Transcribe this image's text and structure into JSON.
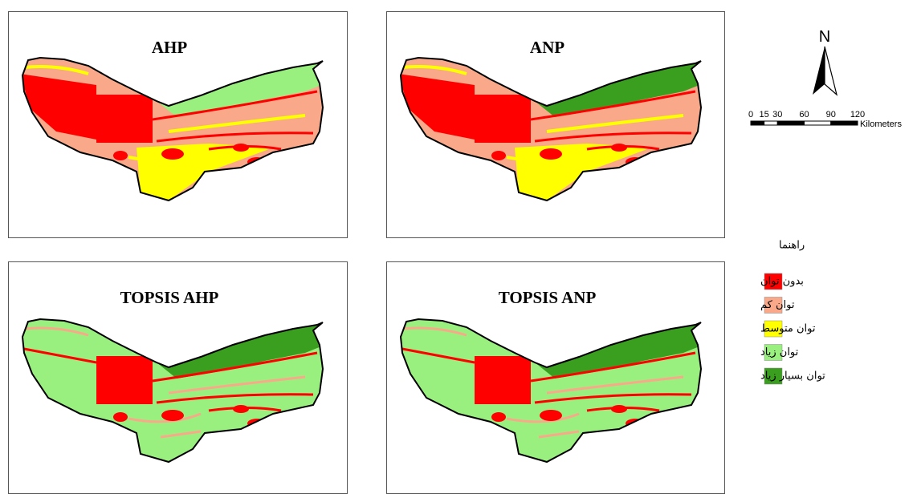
{
  "panels": [
    {
      "title": "AHP"
    },
    {
      "title": "ANP"
    },
    {
      "title": "TOPSIS AHP"
    },
    {
      "title": "TOPSIS ANP"
    }
  ],
  "north_arrow": {
    "label": "N"
  },
  "scale_bar": {
    "ticks": [
      0,
      15,
      30,
      60,
      90,
      120
    ],
    "unit": "Kilometers"
  },
  "legend": {
    "title": "راهنما",
    "items": [
      {
        "label": "بدون توان",
        "color": "#ff0000"
      },
      {
        "label": "توان کم",
        "color": "#f9a98a"
      },
      {
        "label": "توان متوسط",
        "color": "#ffff00"
      },
      {
        "label": "توان زیاد",
        "color": "#99f07f"
      },
      {
        "label": "توان بسیار زیاد",
        "color": "#3a9e1f"
      }
    ]
  }
}
